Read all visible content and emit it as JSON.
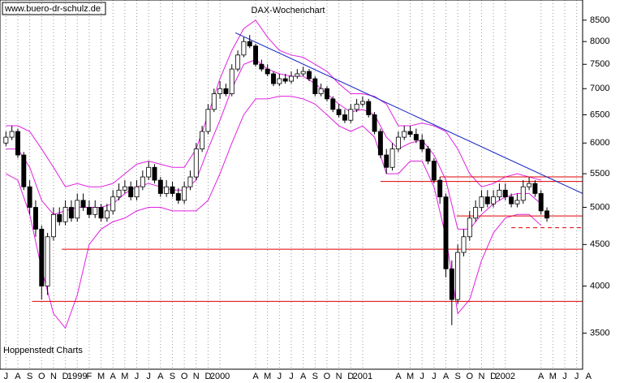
{
  "chart_data": {
    "type": "candlestick",
    "title": "DAX-Wochenchart",
    "annotations": [
      "www.buero-dr-schulz.de",
      "Hoppenstedt Charts"
    ],
    "log_scale": true,
    "ylim": [
      3160,
      9000
    ],
    "yticks": [
      3500,
      4000,
      4500,
      5000,
      5500,
      6000,
      6500,
      7000,
      7500,
      8000,
      8500
    ],
    "xlim": [
      -0.5,
      48.5
    ],
    "xticks": [
      {
        "value": 0,
        "label": "J"
      },
      {
        "value": 1,
        "label": "A"
      },
      {
        "value": 2,
        "label": "S"
      },
      {
        "value": 3,
        "label": "O"
      },
      {
        "value": 4,
        "label": "N"
      },
      {
        "value": 5,
        "label": "D"
      },
      {
        "value": 6,
        "label": "1999"
      },
      {
        "value": 7,
        "label": "F"
      },
      {
        "value": 8,
        "label": "M"
      },
      {
        "value": 9,
        "label": "A"
      },
      {
        "value": 10,
        "label": "M"
      },
      {
        "value": 11,
        "label": "J"
      },
      {
        "value": 12,
        "label": "J"
      },
      {
        "value": 13,
        "label": "A"
      },
      {
        "value": 14,
        "label": "S"
      },
      {
        "value": 15,
        "label": "O"
      },
      {
        "value": 16,
        "label": "N"
      },
      {
        "value": 17,
        "label": "D"
      },
      {
        "value": 18,
        "label": "2000"
      },
      {
        "value": 21,
        "label": "A"
      },
      {
        "value": 22,
        "label": "M"
      },
      {
        "value": 23,
        "label": "J"
      },
      {
        "value": 24,
        "label": "J"
      },
      {
        "value": 25,
        "label": "A"
      },
      {
        "value": 26,
        "label": "S"
      },
      {
        "value": 27,
        "label": "O"
      },
      {
        "value": 28,
        "label": "N"
      },
      {
        "value": 29,
        "label": "D"
      },
      {
        "value": 30,
        "label": "2001"
      },
      {
        "value": 33,
        "label": "A"
      },
      {
        "value": 34,
        "label": "M"
      },
      {
        "value": 35,
        "label": "J"
      },
      {
        "value": 36,
        "label": "J"
      },
      {
        "value": 37,
        "label": "A"
      },
      {
        "value": 38,
        "label": "S"
      },
      {
        "value": 39,
        "label": "O"
      },
      {
        "value": 40,
        "label": "N"
      },
      {
        "value": 41,
        "label": "D"
      },
      {
        "value": 42,
        "label": "2002"
      },
      {
        "value": 45,
        "label": "A"
      },
      {
        "value": 46,
        "label": "M"
      },
      {
        "value": 47,
        "label": "J"
      },
      {
        "value": 48,
        "label": "J"
      },
      {
        "value": 49,
        "label": "A"
      }
    ],
    "x": [
      0,
      0.5,
      1,
      1.5,
      2,
      2.5,
      3,
      3.5,
      4,
      4.5,
      5,
      5.5,
      6,
      6.5,
      7,
      7.5,
      8,
      8.5,
      9,
      9.5,
      10,
      10.5,
      11,
      11.5,
      12,
      12.5,
      13,
      13.5,
      14,
      14.5,
      15,
      15.5,
      16,
      16.5,
      17,
      17.5,
      18,
      18.5,
      19,
      19.5,
      20,
      20.5,
      21,
      21.5,
      22,
      22.5,
      23,
      23.5,
      24,
      24.5,
      25,
      25.5,
      26,
      26.5,
      27,
      27.5,
      28,
      28.5,
      29,
      29.5,
      30,
      30.5,
      31,
      31.5,
      32,
      32.5,
      33,
      33.5,
      34,
      34.5,
      35,
      35.5,
      36,
      36.5,
      37,
      37.5,
      38,
      38.5,
      39,
      39.5,
      40,
      40.5,
      41,
      41.5,
      42,
      42.5,
      43,
      43.5,
      44,
      44.5,
      45,
      45.5
    ],
    "open": [
      6000,
      6100,
      6200,
      5800,
      5300,
      5000,
      4700,
      4000,
      4600,
      4900,
      4800,
      5000,
      4850,
      5100,
      5000,
      4900,
      5000,
      4850,
      4950,
      5150,
      5250,
      5300,
      5150,
      5300,
      5450,
      5600,
      5400,
      5200,
      5300,
      5200,
      5100,
      5300,
      5450,
      5900,
      6200,
      6600,
      6900,
      7000,
      6900,
      7400,
      7700,
      8000,
      7900,
      7500,
      7400,
      7300,
      7100,
      7200,
      7150,
      7250,
      7300,
      7350,
      7200,
      6900,
      7000,
      6800,
      6600,
      6500,
      6400,
      6600,
      6700,
      6750,
      6500,
      6200,
      5800,
      5600,
      5900,
      6100,
      6200,
      6150,
      6050,
      5900,
      5700,
      5400,
      5150,
      4200,
      3850,
      4400,
      4600,
      4850,
      5000,
      5150,
      5050,
      5150,
      5250,
      5150,
      5050,
      5100,
      5300,
      5350,
      5200,
      4950
    ],
    "high": [
      6200,
      6300,
      6250,
      5850,
      5400,
      5100,
      4750,
      4650,
      5000,
      5000,
      5100,
      5100,
      5200,
      5200,
      5100,
      5100,
      5050,
      5050,
      5250,
      5350,
      5400,
      5380,
      5400,
      5550,
      5700,
      5650,
      5450,
      5400,
      5380,
      5280,
      5380,
      5550,
      6000,
      6300,
      6700,
      7000,
      7150,
      7100,
      7500,
      7800,
      8100,
      8150,
      7950,
      7600,
      7500,
      7350,
      7300,
      7300,
      7350,
      7400,
      7450,
      7400,
      7250,
      7100,
      7050,
      6850,
      6700,
      6600,
      6700,
      6800,
      6850,
      6800,
      6550,
      6250,
      5900,
      6000,
      6200,
      6300,
      6300,
      6250,
      6150,
      5950,
      5750,
      5450,
      5200,
      4300,
      4500,
      4700,
      4950,
      5100,
      5250,
      5250,
      5250,
      5350,
      5350,
      5200,
      5200,
      5400,
      5450,
      5400,
      5250,
      5000
    ],
    "low": [
      5950,
      6050,
      5750,
      5250,
      4900,
      4600,
      3850,
      3900,
      4550,
      4750,
      4750,
      4800,
      4800,
      4950,
      4850,
      4850,
      4800,
      4800,
      4900,
      5100,
      5200,
      5100,
      5100,
      5250,
      5400,
      5350,
      5150,
      5150,
      5150,
      5050,
      5050,
      5250,
      5400,
      5850,
      6150,
      6550,
      6800,
      6850,
      6850,
      7350,
      7650,
      7850,
      7450,
      7350,
      7250,
      7050,
      7050,
      7100,
      7100,
      7200,
      7250,
      7150,
      6850,
      6850,
      6750,
      6550,
      6450,
      6350,
      6350,
      6550,
      6650,
      6450,
      6150,
      5750,
      5500,
      5550,
      5850,
      6050,
      6100,
      6000,
      5850,
      5650,
      5350,
      5050,
      4100,
      3580,
      3800,
      4350,
      4550,
      4800,
      4950,
      5000,
      5000,
      5100,
      5100,
      5000,
      5000,
      5050,
      5250,
      5150,
      4900,
      4800
    ],
    "close": [
      6100,
      6200,
      5800,
      5300,
      5000,
      4700,
      4000,
      4600,
      4900,
      4800,
      5000,
      4850,
      5100,
      5000,
      4900,
      5000,
      4850,
      4950,
      5150,
      5250,
      5300,
      5150,
      5300,
      5450,
      5600,
      5400,
      5200,
      5300,
      5200,
      5100,
      5300,
      5450,
      5900,
      6200,
      6600,
      6900,
      7000,
      6900,
      7400,
      7700,
      8000,
      7900,
      7500,
      7400,
      7300,
      7100,
      7200,
      7150,
      7250,
      7300,
      7350,
      7200,
      6900,
      7000,
      6800,
      6600,
      6500,
      6400,
      6600,
      6700,
      6750,
      6500,
      6200,
      5800,
      5600,
      5900,
      6100,
      6200,
      6150,
      6050,
      5900,
      5700,
      5400,
      5150,
      4200,
      3850,
      4400,
      4600,
      4850,
      5000,
      5150,
      5050,
      5150,
      5250,
      5150,
      5050,
      5100,
      5300,
      5350,
      5200,
      4950,
      4850
    ],
    "band_x": [
      0,
      1,
      2,
      3,
      4,
      5,
      6,
      7,
      8,
      9,
      10,
      11,
      12,
      13,
      14,
      15,
      16,
      17,
      18,
      19,
      20,
      21,
      22,
      23,
      24,
      25,
      26,
      27,
      28,
      29,
      30,
      31,
      32,
      33,
      34,
      35,
      36,
      37,
      38,
      39,
      40,
      41,
      42,
      43,
      44,
      45
    ],
    "bands": [
      {
        "color": "#e020e0",
        "values": [
          6300,
          6300,
          6200,
          5900,
          5600,
          5300,
          5350,
          5300,
          5300,
          5350,
          5500,
          5650,
          5700,
          5650,
          5600,
          5600,
          5900,
          6500,
          7200,
          7800,
          8300,
          8500,
          8100,
          7800,
          7700,
          7650,
          7500,
          7350,
          7100,
          6900,
          6900,
          6850,
          6700,
          6300,
          6300,
          6350,
          6300,
          6200,
          5900,
          5500,
          5300,
          5350,
          5450,
          5500,
          5450,
          5400
        ]
      },
      {
        "color": "#e020e0",
        "values": [
          5900,
          5900,
          5600,
          5100,
          4900,
          4950,
          5000,
          5000,
          5000,
          5050,
          5200,
          5300,
          5350,
          5300,
          5250,
          5250,
          5400,
          5900,
          6400,
          7000,
          7500,
          7600,
          7400,
          7300,
          7250,
          7250,
          7100,
          6900,
          6700,
          6550,
          6600,
          6500,
          6100,
          5900,
          6000,
          6050,
          5800,
          5400,
          4700,
          4700,
          4900,
          5050,
          5150,
          5200,
          5200,
          5050
        ]
      },
      {
        "color": "#e020e0",
        "values": [
          5500,
          5400,
          4900,
          4200,
          3700,
          3550,
          3900,
          4500,
          4700,
          4800,
          4850,
          4950,
          5000,
          5000,
          4950,
          4950,
          4950,
          5100,
          5500,
          6000,
          6500,
          6800,
          6800,
          6850,
          6850,
          6800,
          6700,
          6500,
          6300,
          6200,
          6300,
          6100,
          5500,
          5500,
          5700,
          5700,
          5300,
          4600,
          3700,
          3850,
          4300,
          4650,
          4850,
          4900,
          4900,
          4750
        ]
      }
    ],
    "trend_line": {
      "color": "#1020c0",
      "x": [
        19.3,
        48.5
      ],
      "values": [
        8200,
        5200
      ]
    },
    "levels": [
      {
        "value": 5450,
        "x": [
          36.5,
          48.5
        ],
        "color": "#e00000",
        "dashed": false
      },
      {
        "value": 5380,
        "x": [
          31.5,
          48.5
        ],
        "color": "#e00000",
        "dashed": false
      },
      {
        "value": 4880,
        "x": [
          37.9,
          48.5
        ],
        "color": "#e00000",
        "dashed": false
      },
      {
        "value": 4720,
        "x": [
          42.5,
          48.5
        ],
        "color": "#e00000",
        "dashed": true
      },
      {
        "value": 4440,
        "x": [
          4.7,
          48.5
        ],
        "color": "#e00000",
        "dashed": false
      },
      {
        "value": 3830,
        "x": [
          2.2,
          48.5
        ],
        "color": "#e00000",
        "dashed": false
      }
    ]
  }
}
